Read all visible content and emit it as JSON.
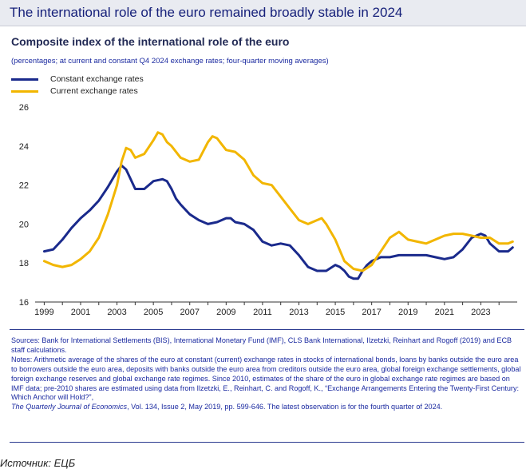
{
  "header": {
    "title": "The international role of the euro remained broadly stable in 2024"
  },
  "chart_data": {
    "type": "line",
    "title": "Composite index of the international role of the euro",
    "subtitle": "(percentages; at current and constant Q4 2024 exchange rates; four-quarter moving averages)",
    "xlabel": "",
    "ylabel": "",
    "xlim": [
      1998.5,
      2025.0
    ],
    "ylim": [
      16,
      26
    ],
    "x_ticks": [
      "1999",
      "2001",
      "2003",
      "2005",
      "2007",
      "2009",
      "2011",
      "2013",
      "2015",
      "2017",
      "2019",
      "2021",
      "2023"
    ],
    "y_ticks": [
      "16",
      "18",
      "20",
      "22",
      "24",
      "26"
    ],
    "legend_position": "top-left",
    "series": [
      {
        "name": "Constant exchange rates",
        "color": "#1a2a8c",
        "x": [
          1999.0,
          1999.5,
          2000.0,
          2000.5,
          2001.0,
          2001.5,
          2002.0,
          2002.5,
          2003.0,
          2003.25,
          2003.5,
          2003.75,
          2004.0,
          2004.5,
          2005.0,
          2005.5,
          2005.75,
          2006.0,
          2006.25,
          2006.5,
          2007.0,
          2007.5,
          2008.0,
          2008.5,
          2009.0,
          2009.25,
          2009.5,
          2010.0,
          2010.5,
          2011.0,
          2011.5,
          2012.0,
          2012.5,
          2013.0,
          2013.5,
          2014.0,
          2014.5,
          2015.0,
          2015.25,
          2015.5,
          2015.75,
          2016.0,
          2016.25,
          2016.5,
          2016.75,
          2017.0,
          2017.5,
          2018.0,
          2018.5,
          2019.0,
          2019.5,
          2020.0,
          2020.5,
          2021.0,
          2021.5,
          2022.0,
          2022.5,
          2023.0,
          2023.25,
          2023.5,
          2024.0,
          2024.5,
          2024.75
        ],
        "values": [
          18.6,
          18.7,
          19.2,
          19.8,
          20.3,
          20.7,
          21.2,
          21.9,
          22.7,
          23.0,
          22.8,
          22.3,
          21.8,
          21.8,
          22.2,
          22.3,
          22.2,
          21.8,
          21.3,
          21.0,
          20.5,
          20.2,
          20.0,
          20.1,
          20.3,
          20.3,
          20.1,
          20.0,
          19.7,
          19.1,
          18.9,
          19.0,
          18.9,
          18.4,
          17.8,
          17.6,
          17.6,
          17.9,
          17.8,
          17.6,
          17.3,
          17.2,
          17.2,
          17.6,
          17.9,
          18.1,
          18.3,
          18.3,
          18.4,
          18.4,
          18.4,
          18.4,
          18.3,
          18.2,
          18.3,
          18.7,
          19.3,
          19.5,
          19.4,
          19.0,
          18.6,
          18.6,
          18.8
        ]
      },
      {
        "name": "Current exchange rates",
        "color": "#f2b600",
        "x": [
          1999.0,
          1999.5,
          2000.0,
          2000.5,
          2001.0,
          2001.5,
          2002.0,
          2002.5,
          2003.0,
          2003.25,
          2003.5,
          2003.75,
          2004.0,
          2004.5,
          2005.0,
          2005.25,
          2005.5,
          2005.75,
          2006.0,
          2006.5,
          2007.0,
          2007.5,
          2008.0,
          2008.25,
          2008.5,
          2008.75,
          2009.0,
          2009.5,
          2010.0,
          2010.5,
          2011.0,
          2011.5,
          2012.0,
          2012.5,
          2013.0,
          2013.5,
          2014.0,
          2014.25,
          2014.5,
          2015.0,
          2015.5,
          2016.0,
          2016.5,
          2017.0,
          2017.5,
          2018.0,
          2018.5,
          2019.0,
          2019.5,
          2020.0,
          2020.5,
          2021.0,
          2021.5,
          2022.0,
          2022.5,
          2023.0,
          2023.5,
          2024.0,
          2024.5,
          2024.75
        ],
        "values": [
          18.1,
          17.9,
          17.8,
          17.9,
          18.2,
          18.6,
          19.3,
          20.5,
          22.0,
          23.2,
          23.9,
          23.8,
          23.4,
          23.6,
          24.3,
          24.7,
          24.6,
          24.2,
          24.0,
          23.4,
          23.2,
          23.3,
          24.2,
          24.5,
          24.4,
          24.1,
          23.8,
          23.7,
          23.3,
          22.5,
          22.1,
          22.0,
          21.4,
          20.8,
          20.2,
          20.0,
          20.2,
          20.3,
          20.0,
          19.2,
          18.1,
          17.7,
          17.6,
          17.9,
          18.6,
          19.3,
          19.6,
          19.2,
          19.1,
          19.0,
          19.2,
          19.4,
          19.5,
          19.5,
          19.4,
          19.3,
          19.3,
          19.0,
          19.0,
          19.1
        ]
      }
    ]
  },
  "footnotes": {
    "sources": "Sources: Bank for International Settlements (BIS), International Monetary Fund (IMF), CLS Bank International, Ilzetzki, Reinhart and Rogoff (2019) and ECB staff calculations.",
    "notes": "Notes: Arithmetic average of the shares of the euro at constant (current) exchange rates in stocks of international bonds, loans by banks outside the euro area to borrowers outside the euro area, deposits with banks outside the euro area from creditors outside the euro area, global foreign exchange settlements, global foreign exchange reserves and global exchange rate regimes. Since 2010, estimates of the share of the euro in global exchange rate regimes are based on IMF data; pre-2010 shares are estimated using data from Ilzetzki, E., Reinhart, C. and Rogoff, K., “Exchange Arrangements Entering the Twenty-First Century: Which Anchor will Hold?”,",
    "citation_journal": "The Quarterly Journal of Economics",
    "citation_rest": ", Vol. 134, Issue 2, May 2019, pp. 599-646. The latest observation is for the fourth quarter of 2024."
  },
  "source_caption": "Источник: ЕЦБ"
}
